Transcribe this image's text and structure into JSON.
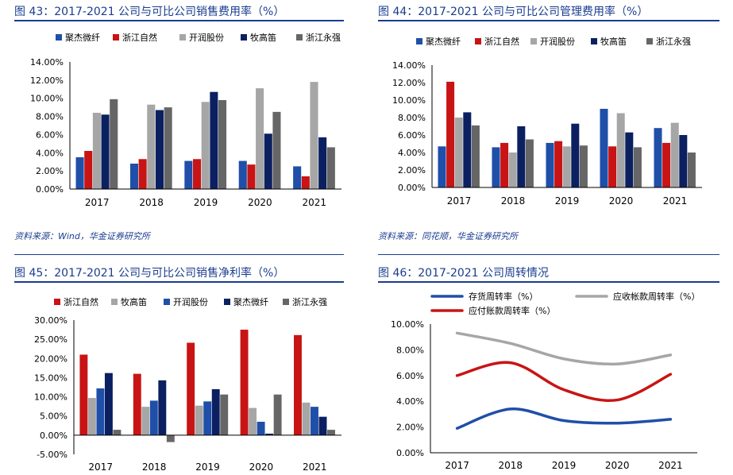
{
  "charts": [
    {
      "title": "图 43：2017-2021 公司与可比公司销售费用率（%）",
      "source": "资料来源：Wind，华金证券研究所",
      "type": "bar",
      "categories": [
        "2017",
        "2018",
        "2019",
        "2020",
        "2021"
      ],
      "ylim": [
        0,
        14
      ],
      "ytick_labels": [
        "0.00%",
        "2.00%",
        "4.00%",
        "6.00%",
        "8.00%",
        "10.00%",
        "12.00%",
        "14.00%"
      ],
      "series": [
        {
          "name": "聚杰微纤",
          "color": "#1f4fa8",
          "values": [
            3.5,
            2.8,
            3.1,
            3.1,
            2.5
          ]
        },
        {
          "name": "浙江自然",
          "color": "#c81414",
          "values": [
            4.2,
            3.3,
            3.3,
            2.7,
            1.4
          ]
        },
        {
          "name": "开润股份",
          "color": "#a6a6a6",
          "values": [
            8.4,
            9.3,
            9.6,
            11.1,
            11.8
          ]
        },
        {
          "name": "牧高笛",
          "color": "#0b2060",
          "values": [
            8.2,
            8.7,
            10.7,
            6.1,
            5.7
          ]
        },
        {
          "name": "浙江永强",
          "color": "#666666",
          "values": [
            9.9,
            9.0,
            9.8,
            8.5,
            4.6
          ]
        }
      ]
    },
    {
      "title": "图 44：2017-2021 公司与可比公司管理费用率（%）",
      "source": "资料来源：同花顺，华金证券研究所",
      "type": "bar",
      "categories": [
        "2017",
        "2018",
        "2019",
        "2020",
        "2021"
      ],
      "ylim": [
        0,
        14
      ],
      "ytick_labels": [
        "0.00%",
        "2.00%",
        "4.00%",
        "6.00%",
        "8.00%",
        "10.00%",
        "12.00%",
        "14.00%"
      ],
      "series": [
        {
          "name": "聚杰微纤",
          "color": "#1f4fa8",
          "values": [
            4.7,
            4.6,
            5.1,
            9.0,
            6.8
          ]
        },
        {
          "name": "浙江自然",
          "color": "#c81414",
          "values": [
            12.1,
            5.1,
            5.3,
            4.7,
            5.1
          ]
        },
        {
          "name": "开润股份",
          "color": "#a6a6a6",
          "values": [
            8.0,
            4.0,
            4.7,
            8.5,
            7.4
          ]
        },
        {
          "name": "牧高笛",
          "color": "#0b2060",
          "values": [
            8.6,
            7.0,
            7.3,
            6.3,
            6.0
          ]
        },
        {
          "name": "浙江永强",
          "color": "#666666",
          "values": [
            7.1,
            5.5,
            4.8,
            4.6,
            4.0
          ]
        }
      ]
    },
    {
      "title": "图 45：2017-2021 公司与可比公司销售净利率（%）",
      "type": "bar",
      "categories": [
        "2017",
        "2018",
        "2019",
        "2020",
        "2021"
      ],
      "ylim": [
        -5,
        30
      ],
      "ytick_labels": [
        "-5.00%",
        "0.00%",
        "5.00%",
        "10.00%",
        "15.00%",
        "20.00%",
        "25.00%",
        "30.00%"
      ],
      "series": [
        {
          "name": "浙江自然",
          "color": "#c81414",
          "values": [
            21.0,
            16.0,
            24.1,
            27.5,
            26.1
          ]
        },
        {
          "name": "牧高笛",
          "color": "#a6a6a6",
          "values": [
            9.7,
            7.4,
            7.7,
            7.1,
            8.5
          ]
        },
        {
          "name": "开润股份",
          "color": "#1f4fa8",
          "values": [
            12.2,
            9.0,
            8.8,
            3.5,
            7.4
          ]
        },
        {
          "name": "聚杰微纤",
          "color": "#0b2060",
          "values": [
            16.2,
            14.3,
            12.0,
            0.4,
            4.8
          ]
        },
        {
          "name": "浙江永强",
          "color": "#666666",
          "values": [
            1.4,
            -1.8,
            10.6,
            10.6,
            1.4
          ]
        }
      ]
    },
    {
      "title": "图 46：2017-2021 公司周转情况",
      "type": "line",
      "categories": [
        "2017",
        "2018",
        "2019",
        "2020",
        "2021"
      ],
      "ylim": [
        0,
        10
      ],
      "ytick_labels": [
        "0.00%",
        "2.00%",
        "4.00%",
        "6.00%",
        "8.00%",
        "10.00%"
      ],
      "series": [
        {
          "name": "存货周转率（%）",
          "color": "#1f4fa8",
          "values": [
            1.9,
            3.4,
            2.5,
            2.3,
            2.6
          ]
        },
        {
          "name": "应收帐款周转率（%）",
          "color": "#a6a6a6",
          "values": [
            9.3,
            8.5,
            7.3,
            6.9,
            7.6
          ]
        },
        {
          "name": "应付账款周转率（%）",
          "color": "#c81414",
          "values": [
            6.0,
            7.0,
            4.9,
            4.1,
            6.1
          ]
        }
      ]
    }
  ]
}
